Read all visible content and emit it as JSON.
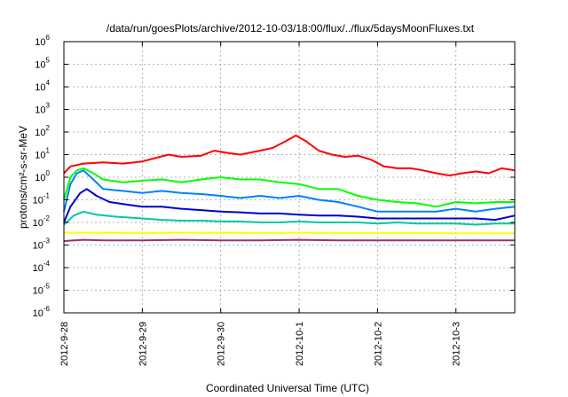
{
  "chart_data": {
    "type": "line",
    "title": "/data/run/goesPlots/archive/2012-10-03/18:00/flux/../flux/5daysMoonFluxes.txt",
    "xlabel": "Coordinated Universal Time (UTC)",
    "ylabel": "protons/cm²-s-sr-MeV",
    "y_scale": "log",
    "ylim": [
      "1e-6",
      "1e6"
    ],
    "xlim": [
      "2012-09-28",
      "2012-10-03 18:00"
    ],
    "x_ticks": [
      "2012-9-28",
      "2012-9-29",
      "2012-9-30",
      "2012-10-1",
      "2012-10-2",
      "2012-10-3"
    ],
    "y_ticks": [
      {
        "base": "10",
        "exp": "-6"
      },
      {
        "base": "10",
        "exp": "-5"
      },
      {
        "base": "10",
        "exp": "-4"
      },
      {
        "base": "10",
        "exp": "-3"
      },
      {
        "base": "10",
        "exp": "-2"
      },
      {
        "base": "10",
        "exp": "-1"
      },
      {
        "base": "10",
        "exp": "0"
      },
      {
        "base": "10",
        "exp": "1"
      },
      {
        "base": "10",
        "exp": "2"
      },
      {
        "base": "10",
        "exp": "3"
      },
      {
        "base": "10",
        "exp": "4"
      },
      {
        "base": "10",
        "exp": "5"
      },
      {
        "base": "10",
        "exp": "6"
      }
    ],
    "grid": true,
    "legend": "none",
    "series": [
      {
        "color": "#ff0000",
        "points": [
          [
            "2012-09-28 00:00",
            1.5
          ],
          [
            "2012-09-28 02:00",
            3
          ],
          [
            "2012-09-28 06:00",
            4
          ],
          [
            "2012-09-28 12:00",
            4.5
          ],
          [
            "2012-09-28 18:00",
            4
          ],
          [
            "2012-09-29 00:00",
            5
          ],
          [
            "2012-09-29 04:00",
            7
          ],
          [
            "2012-09-29 08:00",
            10
          ],
          [
            "2012-09-29 12:00",
            8
          ],
          [
            "2012-09-29 18:00",
            9
          ],
          [
            "2012-09-29 22:00",
            15
          ],
          [
            "2012-09-30 02:00",
            12
          ],
          [
            "2012-09-30 06:00",
            10
          ],
          [
            "2012-09-30 12:00",
            15
          ],
          [
            "2012-09-30 16:00",
            20
          ],
          [
            "2012-09-30 20:00",
            40
          ],
          [
            "2012-09-30 23:00",
            70
          ],
          [
            "2012-10-01 02:00",
            40
          ],
          [
            "2012-10-01 06:00",
            15
          ],
          [
            "2012-10-01 10:00",
            10
          ],
          [
            "2012-10-01 14:00",
            8
          ],
          [
            "2012-10-01 18:00",
            9
          ],
          [
            "2012-10-01 22:00",
            6
          ],
          [
            "2012-10-02 02:00",
            3
          ],
          [
            "2012-10-02 06:00",
            2.5
          ],
          [
            "2012-10-02 10:00",
            2.5
          ],
          [
            "2012-10-02 14:00",
            2
          ],
          [
            "2012-10-02 18:00",
            1.5
          ],
          [
            "2012-10-02 22:00",
            1.2
          ],
          [
            "2012-10-03 02:00",
            1.5
          ],
          [
            "2012-10-03 06:00",
            1.8
          ],
          [
            "2012-10-03 10:00",
            1.5
          ],
          [
            "2012-10-03 14:00",
            2.5
          ],
          [
            "2012-10-03 18:00",
            2
          ]
        ]
      },
      {
        "color": "#00ff00",
        "points": [
          [
            "2012-09-28 00:00",
            0.1
          ],
          [
            "2012-09-28 02:00",
            1
          ],
          [
            "2012-09-28 04:00",
            2
          ],
          [
            "2012-09-28 06:00",
            2.5
          ],
          [
            "2012-09-28 09:00",
            1.5
          ],
          [
            "2012-09-28 12:00",
            0.8
          ],
          [
            "2012-09-28 18:00",
            0.6
          ],
          [
            "2012-09-29 00:00",
            0.7
          ],
          [
            "2012-09-29 06:00",
            0.8
          ],
          [
            "2012-09-29 12:00",
            0.6
          ],
          [
            "2012-09-29 18:00",
            0.8
          ],
          [
            "2012-09-30 00:00",
            1
          ],
          [
            "2012-09-30 06:00",
            0.8
          ],
          [
            "2012-09-30 12:00",
            0.8
          ],
          [
            "2012-09-30 18:00",
            0.6
          ],
          [
            "2012-10-01 00:00",
            0.5
          ],
          [
            "2012-10-01 06:00",
            0.3
          ],
          [
            "2012-10-01 12:00",
            0.3
          ],
          [
            "2012-10-01 18:00",
            0.15
          ],
          [
            "2012-10-02 00:00",
            0.1
          ],
          [
            "2012-10-02 06:00",
            0.08
          ],
          [
            "2012-10-02 12:00",
            0.07
          ],
          [
            "2012-10-02 18:00",
            0.05
          ],
          [
            "2012-10-03 00:00",
            0.08
          ],
          [
            "2012-10-03 06:00",
            0.07
          ],
          [
            "2012-10-03 12:00",
            0.08
          ],
          [
            "2012-10-03 18:00",
            0.08
          ]
        ]
      },
      {
        "color": "#0080ff",
        "points": [
          [
            "2012-09-28 00:00",
            0.03
          ],
          [
            "2012-09-28 02:00",
            0.5
          ],
          [
            "2012-09-28 04:00",
            1.5
          ],
          [
            "2012-09-28 06:00",
            2
          ],
          [
            "2012-09-28 09:00",
            0.8
          ],
          [
            "2012-09-28 12:00",
            0.3
          ],
          [
            "2012-09-28 18:00",
            0.25
          ],
          [
            "2012-09-29 00:00",
            0.2
          ],
          [
            "2012-09-29 06:00",
            0.25
          ],
          [
            "2012-09-29 12:00",
            0.2
          ],
          [
            "2012-09-29 18:00",
            0.18
          ],
          [
            "2012-09-30 00:00",
            0.15
          ],
          [
            "2012-09-30 06:00",
            0.12
          ],
          [
            "2012-09-30 12:00",
            0.15
          ],
          [
            "2012-09-30 18:00",
            0.12
          ],
          [
            "2012-10-01 00:00",
            0.15
          ],
          [
            "2012-10-01 06:00",
            0.1
          ],
          [
            "2012-10-01 12:00",
            0.08
          ],
          [
            "2012-10-01 18:00",
            0.05
          ],
          [
            "2012-10-02 00:00",
            0.03
          ],
          [
            "2012-10-02 06:00",
            0.03
          ],
          [
            "2012-10-02 12:00",
            0.03
          ],
          [
            "2012-10-02 18:00",
            0.03
          ],
          [
            "2012-10-03 00:00",
            0.04
          ],
          [
            "2012-10-03 06:00",
            0.03
          ],
          [
            "2012-10-03 12:00",
            0.04
          ],
          [
            "2012-10-03 18:00",
            0.05
          ]
        ]
      },
      {
        "color": "#0000d0",
        "points": [
          [
            "2012-09-28 00:00",
            0.01
          ],
          [
            "2012-09-28 02:00",
            0.05
          ],
          [
            "2012-09-28 05:00",
            0.2
          ],
          [
            "2012-09-28 07:00",
            0.3
          ],
          [
            "2012-09-28 10:00",
            0.15
          ],
          [
            "2012-09-28 14:00",
            0.08
          ],
          [
            "2012-09-28 20:00",
            0.06
          ],
          [
            "2012-09-29 00:00",
            0.05
          ],
          [
            "2012-09-29 06:00",
            0.05
          ],
          [
            "2012-09-29 12:00",
            0.04
          ],
          [
            "2012-09-29 18:00",
            0.035
          ],
          [
            "2012-09-30 00:00",
            0.03
          ],
          [
            "2012-09-30 06:00",
            0.028
          ],
          [
            "2012-09-30 12:00",
            0.025
          ],
          [
            "2012-09-30 18:00",
            0.025
          ],
          [
            "2012-10-01 00:00",
            0.022
          ],
          [
            "2012-10-01 06:00",
            0.02
          ],
          [
            "2012-10-01 12:00",
            0.02
          ],
          [
            "2012-10-01 18:00",
            0.018
          ],
          [
            "2012-10-02 00:00",
            0.015
          ],
          [
            "2012-10-02 06:00",
            0.015
          ],
          [
            "2012-10-02 12:00",
            0.015
          ],
          [
            "2012-10-02 18:00",
            0.015
          ],
          [
            "2012-10-03 00:00",
            0.015
          ],
          [
            "2012-10-03 06:00",
            0.015
          ],
          [
            "2012-10-03 12:00",
            0.013
          ],
          [
            "2012-10-03 18:00",
            0.02
          ]
        ]
      },
      {
        "color": "#00c8a0",
        "points": [
          [
            "2012-09-28 00:00",
            0.008
          ],
          [
            "2012-09-28 03:00",
            0.02
          ],
          [
            "2012-09-28 06:00",
            0.03
          ],
          [
            "2012-09-28 10:00",
            0.022
          ],
          [
            "2012-09-28 16:00",
            0.018
          ],
          [
            "2012-09-29 00:00",
            0.015
          ],
          [
            "2012-09-29 06:00",
            0.013
          ],
          [
            "2012-09-29 12:00",
            0.012
          ],
          [
            "2012-09-29 18:00",
            0.012
          ],
          [
            "2012-09-30 00:00",
            0.011
          ],
          [
            "2012-09-30 06:00",
            0.011
          ],
          [
            "2012-09-30 12:00",
            0.01
          ],
          [
            "2012-09-30 18:00",
            0.01
          ],
          [
            "2012-10-01 00:00",
            0.011
          ],
          [
            "2012-10-01 06:00",
            0.01
          ],
          [
            "2012-10-01 12:00",
            0.01
          ],
          [
            "2012-10-01 18:00",
            0.01
          ],
          [
            "2012-10-02 00:00",
            0.009
          ],
          [
            "2012-10-02 06:00",
            0.01
          ],
          [
            "2012-10-02 12:00",
            0.009
          ],
          [
            "2012-10-02 18:00",
            0.009
          ],
          [
            "2012-10-03 00:00",
            0.009
          ],
          [
            "2012-10-03 06:00",
            0.008
          ],
          [
            "2012-10-03 12:00",
            0.009
          ],
          [
            "2012-10-03 18:00",
            0.009
          ]
        ]
      },
      {
        "color": "#ffff00",
        "points": [
          [
            "2012-09-28 00:00",
            0.0035
          ],
          [
            "2012-09-28 12:00",
            0.0035
          ],
          [
            "2012-09-29 00:00",
            0.0034
          ],
          [
            "2012-09-29 12:00",
            0.0035
          ],
          [
            "2012-09-30 00:00",
            0.0035
          ],
          [
            "2012-09-30 12:00",
            0.0034
          ],
          [
            "2012-10-01 00:00",
            0.0035
          ],
          [
            "2012-10-01 12:00",
            0.0034
          ],
          [
            "2012-10-02 00:00",
            0.0034
          ],
          [
            "2012-10-02 12:00",
            0.0034
          ],
          [
            "2012-10-03 00:00",
            0.0033
          ],
          [
            "2012-10-03 18:00",
            0.0033
          ]
        ]
      },
      {
        "color": "#a0306a",
        "points": [
          [
            "2012-09-28 00:00",
            0.0015
          ],
          [
            "2012-09-28 06:00",
            0.0017
          ],
          [
            "2012-09-28 12:00",
            0.0016
          ],
          [
            "2012-09-29 00:00",
            0.0016
          ],
          [
            "2012-09-29 12:00",
            0.0017
          ],
          [
            "2012-09-30 00:00",
            0.0016
          ],
          [
            "2012-09-30 12:00",
            0.0016
          ],
          [
            "2012-10-01 00:00",
            0.0017
          ],
          [
            "2012-10-01 12:00",
            0.0016
          ],
          [
            "2012-10-02 00:00",
            0.0016
          ],
          [
            "2012-10-02 12:00",
            0.0016
          ],
          [
            "2012-10-03 00:00",
            0.0016
          ],
          [
            "2012-10-03 18:00",
            0.0016
          ]
        ]
      }
    ]
  }
}
